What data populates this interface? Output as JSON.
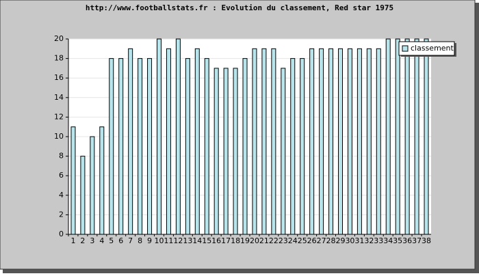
{
  "chart_data": {
    "type": "bar",
    "title": "http://www.footballstats.fr : Evolution du classement, Red star 1975",
    "categories": [
      "1",
      "2",
      "3",
      "4",
      "5",
      "6",
      "7",
      "8",
      "9",
      "10",
      "11",
      "12",
      "13",
      "14",
      "15",
      "16",
      "17",
      "18",
      "19",
      "20",
      "21",
      "22",
      "23",
      "24",
      "25",
      "26",
      "27",
      "28",
      "29",
      "30",
      "31",
      "32",
      "33",
      "34",
      "35",
      "36",
      "37",
      "38"
    ],
    "series": [
      {
        "name": "classement",
        "color": "#b8e4ec",
        "values": [
          11,
          8,
          10,
          11,
          18,
          18,
          19,
          18,
          18,
          20,
          19,
          20,
          18,
          19,
          18,
          17,
          17,
          17,
          18,
          19,
          19,
          19,
          17,
          18,
          18,
          19,
          19,
          19,
          19,
          19,
          19,
          19,
          19,
          20,
          20,
          20,
          20,
          20
        ]
      }
    ],
    "ylim": [
      0,
      20
    ],
    "yticks": [
      0,
      2,
      4,
      6,
      8,
      10,
      12,
      14,
      16,
      18,
      20
    ],
    "grid": true,
    "legend": "top-right"
  }
}
